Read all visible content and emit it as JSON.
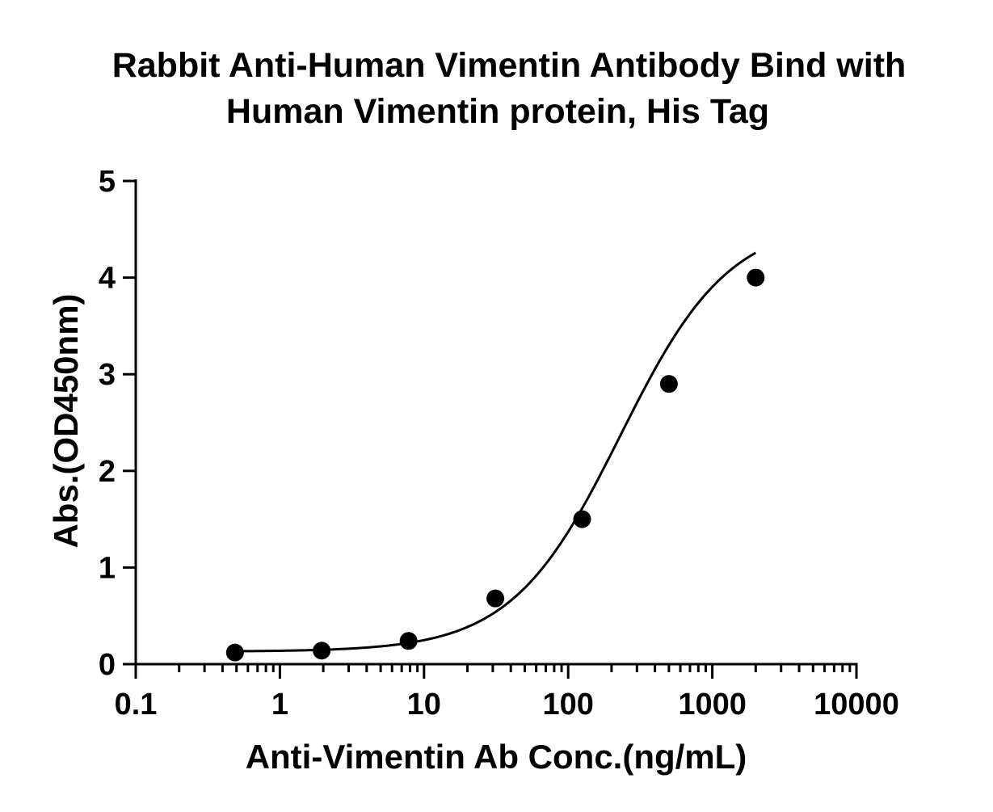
{
  "chart_data": {
    "type": "scatter",
    "title_lines": [
      "Rabbit Anti-Human Vimentin Antibody Bind with",
      "Human Vimentin protein, His Tag"
    ],
    "xlabel": "Anti-Vimentin Ab Conc.(ng/mL)",
    "ylabel": "Abs.(OD450nm)",
    "x_scale": "log",
    "xlim": [
      0.1,
      10000
    ],
    "ylim": [
      0,
      5
    ],
    "x_ticks": [
      0.1,
      1,
      10,
      100,
      1000,
      10000
    ],
    "x_tick_labels": [
      "0.1",
      "1",
      "10",
      "100",
      "1000",
      "10000"
    ],
    "y_ticks": [
      0,
      1,
      2,
      3,
      4,
      5
    ],
    "y_tick_labels": [
      "0",
      "1",
      "2",
      "3",
      "4",
      "5"
    ],
    "grid": false,
    "series": [
      {
        "x": [
          0.488,
          1.95,
          7.81,
          31.25,
          125,
          500,
          2000
        ],
        "y": [
          0.12,
          0.14,
          0.24,
          0.68,
          1.5,
          2.9,
          4.0
        ],
        "marker": "circle",
        "color": "#000000",
        "fit": "4PL",
        "fit_params": {
          "bottom": 0.13,
          "top": 4.6,
          "ec50": 230,
          "hill": 1.15
        }
      }
    ]
  }
}
